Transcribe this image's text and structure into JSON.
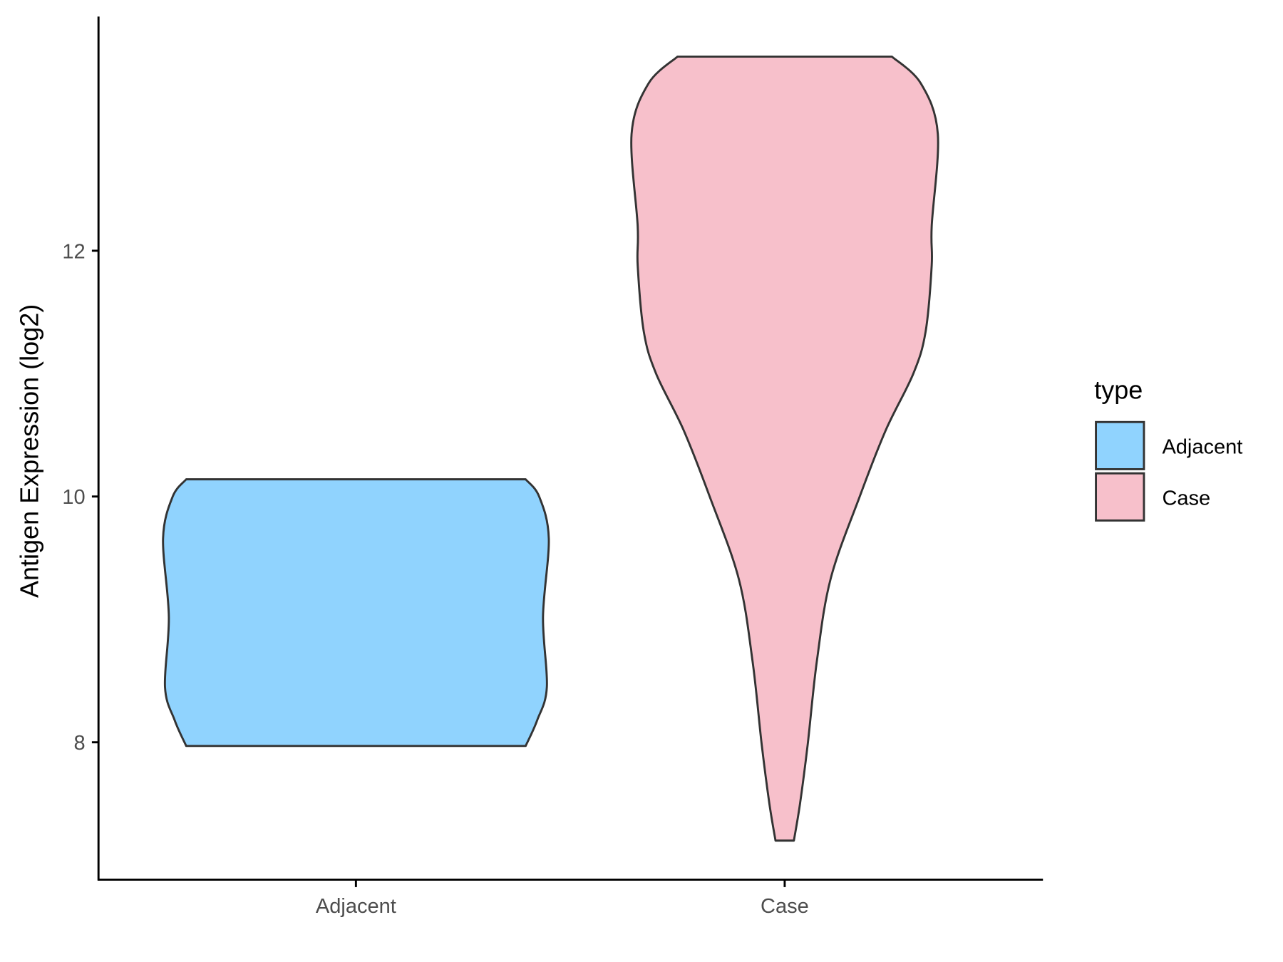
{
  "chart_data": {
    "type": "violin",
    "title": "",
    "xlabel": "",
    "ylabel": "Antigen Expression (log2)",
    "categories": [
      "Adjacent",
      "Case"
    ],
    "y_ticks": [
      8,
      10,
      12
    ],
    "ylim": [
      6.9,
      13.9
    ],
    "grid": false,
    "legend": {
      "title": "type",
      "position": "right",
      "entries": [
        "Adjacent",
        "Case"
      ]
    },
    "series": [
      {
        "name": "Adjacent",
        "color": "#90D3FE",
        "min": 7.97,
        "max": 10.14,
        "density_profile": {
          "y": [
            7.97,
            8.18,
            8.45,
            9.02,
            9.66,
            10.0,
            10.14
          ],
          "relative_width": [
            0.88,
            0.94,
            0.99,
            0.97,
            1.0,
            0.95,
            0.88
          ]
        }
      },
      {
        "name": "Case",
        "color": "#F7C0CB",
        "min": 7.2,
        "max": 13.58,
        "density_profile": {
          "y": [
            7.2,
            7.5,
            7.98,
            8.66,
            9.33,
            10.0,
            10.54,
            11.0,
            11.34,
            11.88,
            12.2,
            12.95,
            13.36,
            13.58
          ],
          "relative_width": [
            0.06,
            0.1,
            0.15,
            0.21,
            0.3,
            0.49,
            0.66,
            0.84,
            0.92,
            0.96,
            0.96,
            1.0,
            0.89,
            0.7
          ]
        }
      }
    ]
  }
}
